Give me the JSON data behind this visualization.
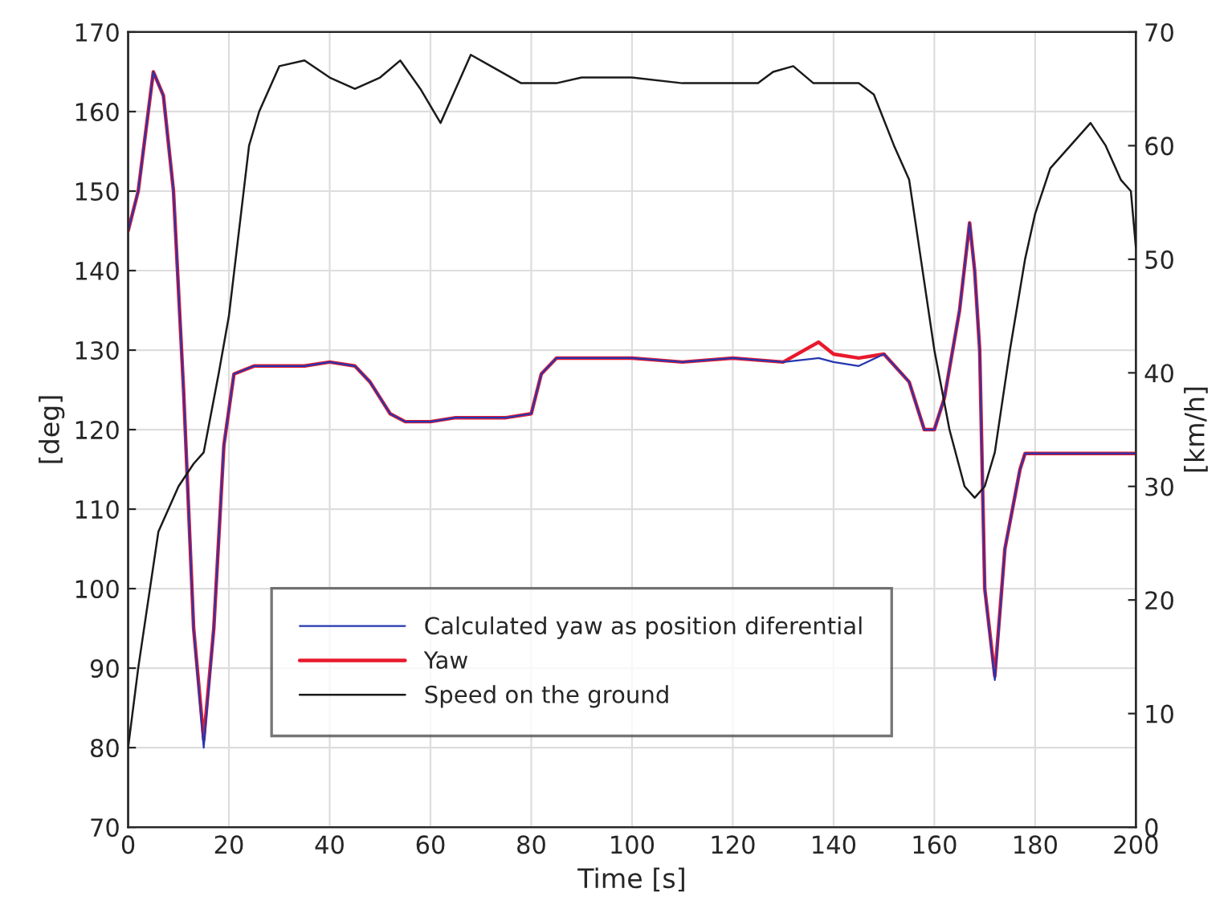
{
  "chart_data": {
    "type": "line",
    "xlabel": "Time [s]",
    "ylabel": "[deg]",
    "y2label": "[km/h]",
    "xlim": [
      0,
      200
    ],
    "xticks": [
      0,
      20,
      40,
      60,
      80,
      100,
      120,
      140,
      160,
      180,
      200
    ],
    "ylim": [
      70,
      170
    ],
    "yticks": [
      70,
      80,
      90,
      100,
      110,
      120,
      130,
      140,
      150,
      160,
      170
    ],
    "y2lim": [
      0,
      70
    ],
    "y2ticks": [
      0,
      10,
      20,
      30,
      40,
      50,
      60,
      70
    ],
    "grid": true,
    "legend": "bottom",
    "line_style": "solid",
    "marker": "none",
    "series": [
      {
        "name": "Calculated yaw as position diferential",
        "color": "#2536b0",
        "x": [
          0,
          2,
          5,
          7,
          9,
          11,
          13,
          15,
          17,
          19,
          21,
          25,
          30,
          35,
          40,
          45,
          48,
          52,
          55,
          60,
          65,
          70,
          75,
          80,
          82,
          85,
          90,
          100,
          110,
          120,
          130,
          137,
          140,
          145,
          150,
          155,
          158,
          160,
          162,
          165,
          167,
          168,
          169,
          170,
          172,
          174,
          177,
          178,
          185,
          200
        ],
        "values": [
          145,
          150,
          165,
          162,
          150,
          125,
          95,
          80,
          95,
          118,
          127,
          128,
          128,
          128,
          128.5,
          128,
          126,
          122,
          121,
          121,
          121.5,
          121.5,
          121.5,
          122,
          127,
          129,
          129,
          129,
          128.5,
          129,
          128.5,
          129,
          128.5,
          128,
          129.5,
          126,
          120,
          120,
          124,
          135,
          146,
          140,
          130,
          100,
          88.5,
          105,
          115,
          117,
          117,
          117
        ]
      },
      {
        "name": "Yaw",
        "color": "#e8192c",
        "x": [
          0,
          2,
          5,
          7,
          9,
          11,
          13,
          15,
          17,
          19,
          21,
          25,
          30,
          35,
          40,
          45,
          48,
          52,
          55,
          60,
          65,
          70,
          75,
          80,
          82,
          85,
          90,
          100,
          110,
          120,
          130,
          137,
          140,
          145,
          150,
          155,
          158,
          160,
          162,
          165,
          167,
          168,
          169,
          170,
          172,
          174,
          177,
          178,
          185,
          200
        ],
        "values": [
          145,
          150,
          165,
          162,
          150,
          125,
          95,
          81,
          95,
          118,
          127,
          128,
          128,
          128,
          128.5,
          128,
          126,
          122,
          121,
          121,
          121.5,
          121.5,
          121.5,
          122,
          127,
          129,
          129,
          129,
          128.5,
          129,
          128.5,
          131,
          129.5,
          129,
          129.5,
          126,
          120,
          120,
          124,
          135,
          146,
          140,
          130,
          100,
          89,
          105,
          115,
          117,
          117,
          117
        ]
      },
      {
        "name": "Speed on the ground",
        "color": "#1a1a1a",
        "axis": "y2",
        "x": [
          0,
          2,
          4,
          6,
          10,
          13,
          15,
          18,
          20,
          24,
          26,
          30,
          35,
          40,
          45,
          50,
          54,
          58,
          62,
          65,
          68,
          72,
          78,
          85,
          90,
          100,
          110,
          125,
          128,
          132,
          136,
          145,
          148,
          152,
          155,
          158,
          160,
          163,
          166,
          168,
          170,
          172,
          175,
          178,
          180,
          183,
          187,
          191,
          194,
          197,
          199,
          200
        ],
        "values": [
          7,
          14,
          20,
          26,
          30,
          32,
          33,
          40,
          45,
          60,
          63,
          67,
          67.5,
          66,
          65,
          66,
          67.5,
          65,
          62,
          65,
          68,
          67,
          65.5,
          65.5,
          66,
          66,
          65.5,
          65.5,
          66.5,
          67,
          65.5,
          65.5,
          64.5,
          60,
          57,
          48,
          42,
          35,
          30,
          29,
          30,
          33,
          42,
          50,
          54,
          58,
          60,
          62,
          60,
          57,
          56,
          51
        ]
      }
    ]
  }
}
